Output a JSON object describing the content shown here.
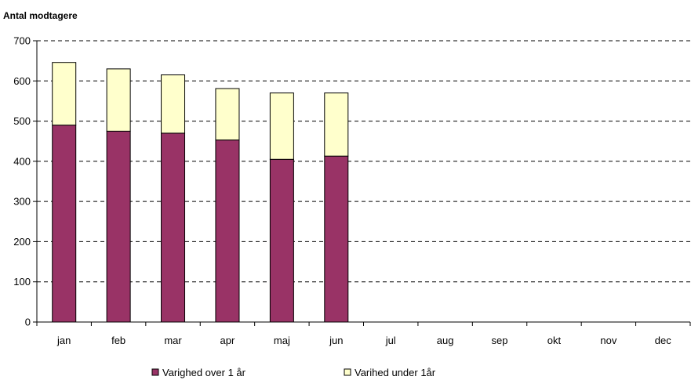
{
  "chart_data": {
    "type": "bar",
    "stacked": true,
    "title": "",
    "ylabel": "Antal modtagere",
    "xlabel": "",
    "ylim": [
      0,
      700
    ],
    "yticks": [
      0,
      100,
      200,
      300,
      400,
      500,
      600,
      700
    ],
    "grid": true,
    "legend_position": "bottom",
    "categories": [
      "jan",
      "feb",
      "mar",
      "apr",
      "maj",
      "jun",
      "jul",
      "aug",
      "sep",
      "okt",
      "nov",
      "dec"
    ],
    "series": [
      {
        "name": "Varighed over 1 år",
        "color": "#993366",
        "values": [
          490,
          475,
          470,
          453,
          405,
          413,
          null,
          null,
          null,
          null,
          null,
          null
        ]
      },
      {
        "name": "Varihed under 1år",
        "color": "#FFFFCC",
        "values": [
          156,
          155,
          145,
          128,
          165,
          157,
          null,
          null,
          null,
          null,
          null,
          null
        ]
      }
    ]
  }
}
